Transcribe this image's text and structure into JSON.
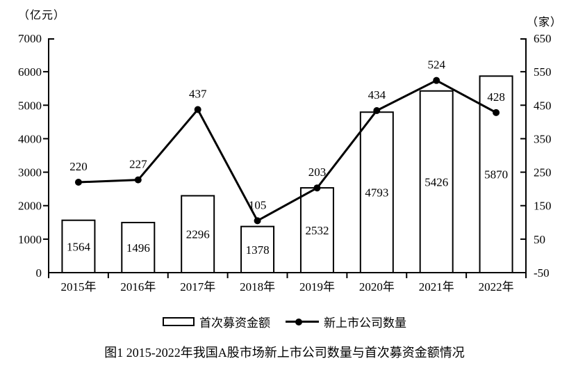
{
  "figure": {
    "caption": "图1  2015-2022年我国A股市场新上市公司数量与首次募资金额情况"
  },
  "chart_data": {
    "type": "bar+line combo",
    "categories": [
      "2015年",
      "2016年",
      "2017年",
      "2018年",
      "2019年",
      "2020年",
      "2021年",
      "2022年"
    ],
    "series": [
      {
        "name": "首次募资金额",
        "type": "bar",
        "axis": "left",
        "values": [
          1564,
          1496,
          2296,
          1378,
          2532,
          4793,
          5426,
          5870
        ]
      },
      {
        "name": "新上市公司数量",
        "type": "line",
        "axis": "right",
        "values": [
          220,
          227,
          437,
          105,
          203,
          434,
          524,
          428
        ]
      }
    ],
    "left_axis": {
      "unit": "（亿元）",
      "min": 0,
      "max": 7000,
      "step": 1000,
      "ticks": [
        0,
        1000,
        2000,
        3000,
        4000,
        5000,
        6000,
        7000
      ]
    },
    "right_axis": {
      "unit": "（家）",
      "min": -50,
      "max": 650,
      "step": 100,
      "ticks": [
        -50,
        50,
        150,
        250,
        350,
        450,
        550,
        650
      ]
    },
    "grid": false,
    "legend_position": "bottom",
    "colors": {
      "background": "#ffffff",
      "bar_fill": "#ffffff",
      "bar_border": "#000000",
      "line": "#000000",
      "text": "#000000"
    }
  }
}
